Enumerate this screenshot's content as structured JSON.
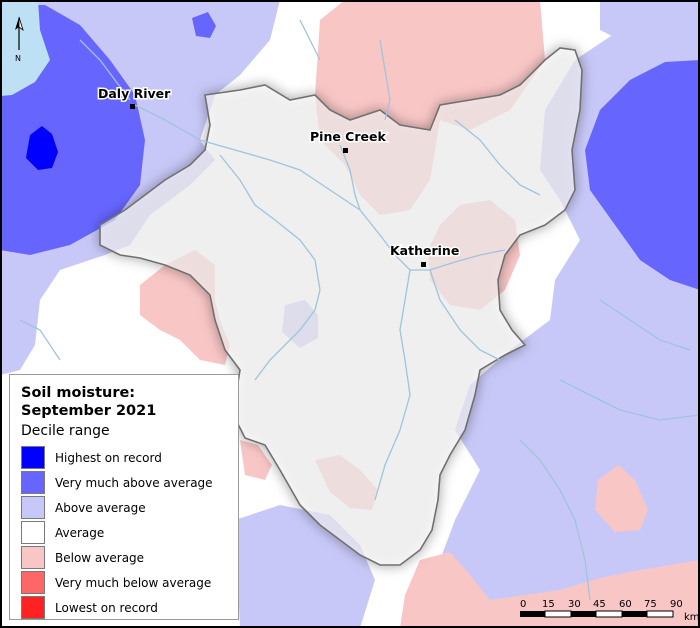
{
  "map": {
    "towns": [
      {
        "name": "Daly River"
      },
      {
        "name": "Pine Creek"
      },
      {
        "name": "Katherine"
      }
    ],
    "north_label": "N",
    "scale_bar": {
      "ticks": [
        "0",
        "15",
        "30",
        "45",
        "60",
        "75",
        "90"
      ],
      "unit": "km"
    }
  },
  "legend": {
    "title": "Soil moisture: September 2021",
    "subtitle": "Decile range",
    "items": [
      {
        "label": "Highest on record",
        "color": "#0000ff"
      },
      {
        "label": "Very much above average",
        "color": "#6666ff"
      },
      {
        "label": "Above average",
        "color": "#c8c8f8"
      },
      {
        "label": "Average",
        "color": "#ffffff"
      },
      {
        "label": "Below average",
        "color": "#f9c6c6"
      },
      {
        "label": "Very much below average",
        "color": "#ff6666"
      },
      {
        "label": "Lowest on record",
        "color": "#ff2222"
      }
    ]
  }
}
